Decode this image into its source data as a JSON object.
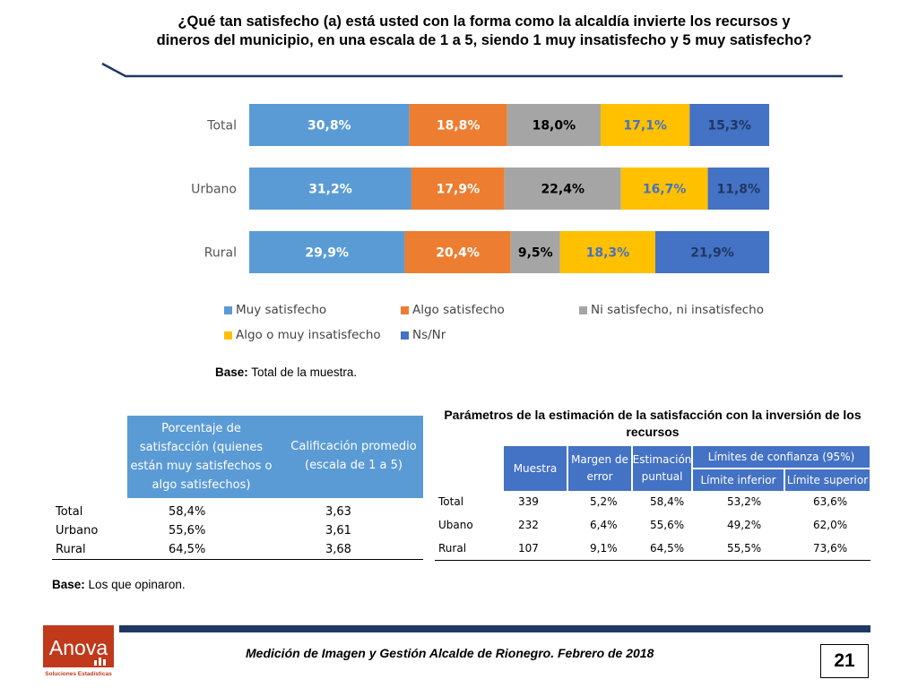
{
  "title": "¿Qué tan satisfecho (a) está usted con la forma como la alcaldía invierte los recursos y dineros del municipio, en una escala de 1 a 5, siendo 1 muy insatisfecho y 5 muy satisfecho?",
  "colors": {
    "muy": "#5b9bd5",
    "algo": "#ed7d31",
    "ni": "#a5a5a5",
    "insat": "#ffc000",
    "ns": "#4472c4",
    "header_light": "#5b9bd5",
    "header_dark": "#4472c4",
    "rule": "#1f3864"
  },
  "chart_data": {
    "type": "bar",
    "orientation": "horizontal-stacked-100",
    "categories": [
      "Total",
      "Urbano",
      "Rural"
    ],
    "series": [
      {
        "name": "Muy satisfecho",
        "values": [
          30.8,
          31.2,
          29.9
        ],
        "labels": [
          "30,8%",
          "31,2%",
          "29,9%"
        ],
        "color": "#5b9bd5"
      },
      {
        "name": "Algo satisfecho",
        "values": [
          18.8,
          17.9,
          20.4
        ],
        "labels": [
          "18,8%",
          "17,9%",
          "20,4%"
        ],
        "color": "#ed7d31"
      },
      {
        "name": "Ni satisfecho, ni insatisfecho",
        "values": [
          18.0,
          22.4,
          9.5
        ],
        "labels": [
          "18,0%",
          "22,4%",
          "9,5%"
        ],
        "color": "#a5a5a5"
      },
      {
        "name": "Algo o muy insatisfecho",
        "values": [
          17.1,
          16.7,
          18.3
        ],
        "labels": [
          "17,1%",
          "16,7%",
          "18,3%"
        ],
        "color": "#ffc000"
      },
      {
        "name": "Ns/Nr",
        "values": [
          15.3,
          11.8,
          21.9
        ],
        "labels": [
          "15,3%",
          "11,8%",
          "21,9%"
        ],
        "color": "#4472c4"
      }
    ],
    "legend": "bottom"
  },
  "base_note": {
    "label": "Base:",
    "text": "Total de la muestra."
  },
  "left_table": {
    "headers": [
      "Porcentaje de satisfacción (quienes están muy satisfechos o algo satisfechos)",
      "Calificación promedio (escala de 1 a 5)"
    ],
    "rows": [
      [
        "Total",
        "58,4%",
        "3,63"
      ],
      [
        "Urbano",
        "55,6%",
        "3,61"
      ],
      [
        "Rural",
        "64,5%",
        "3,68"
      ]
    ]
  },
  "base_note2": {
    "label": "Base:",
    "text": "Los que opinaron."
  },
  "right_table": {
    "title": "Parámetros de la estimación de la satisfacción con la inversión de los recursos",
    "headers": {
      "muestra": "Muestra",
      "margen": "Margen de error",
      "estimacion": "Estimación puntual",
      "limites": "Límites de confianza (95%)",
      "inferior": "Límite inferior",
      "superior": "Límite superior"
    },
    "rows": [
      [
        "Total",
        "339",
        "5,2%",
        "58,4%",
        "53,2%",
        "63,6%"
      ],
      [
        "Ubano",
        "232",
        "6,4%",
        "55,6%",
        "49,2%",
        "62,0%"
      ],
      [
        "Rural",
        "107",
        "9,1%",
        "64,5%",
        "55,5%",
        "73,6%"
      ]
    ]
  },
  "logo": {
    "name": "Anova",
    "tagline": "Soluciones Estadísticas"
  },
  "footer": {
    "text": "Medición de Imagen y Gestión Alcalde de Rionegro. Febrero de 2018",
    "page": "21"
  }
}
